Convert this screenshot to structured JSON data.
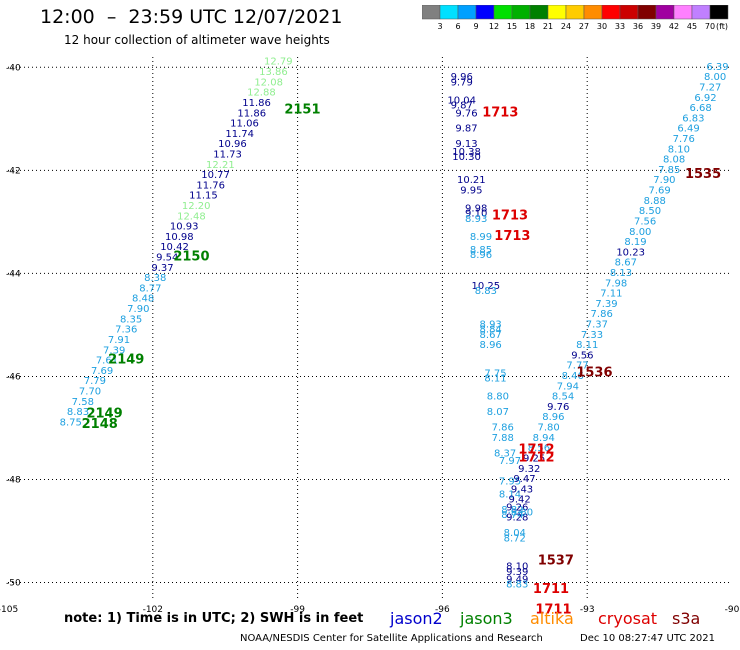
{
  "header": {
    "title": "12:00  –  23:59 UTC 12/07/2021",
    "subtitle": "12 hour collection of altimeter wave heights"
  },
  "colorbar": {
    "labels": [
      "3",
      "6",
      "9",
      "12",
      "15",
      "18",
      "21",
      "24",
      "27",
      "30",
      "33",
      "36",
      "39",
      "42",
      "45",
      "70"
    ],
    "unit": "(ft)",
    "colors": [
      "#808080",
      "#00e0ff",
      "#00a0ff",
      "#0000ff",
      "#00e000",
      "#00b000",
      "#008000",
      "#ffff00",
      "#ffcc00",
      "#ff8c00",
      "#ff0000",
      "#cc0000",
      "#800000",
      "#a000a0",
      "#ff80ff",
      "#c080ff",
      "#000000"
    ]
  },
  "note": "note:  1) Time is in UTC;  2) SWH is in feet",
  "satellite_legend": [
    {
      "name": "jason2",
      "color": "#0000cc"
    },
    {
      "name": "jason3",
      "color": "#008000"
    },
    {
      "name": "altika",
      "color": "#ff8c00"
    },
    {
      "name": "cryosat",
      "color": "#dd0000"
    },
    {
      "name": "s3a",
      "color": "#800000"
    }
  ],
  "footer": {
    "credit": "NOAA/NESDIS Center for Satellite Applications and Research",
    "timestamp": "Dec 10 08:27:47 UTC 2021"
  },
  "chart_data": {
    "type": "scatter",
    "title": "12:00  –  23:59 UTC 12/07/2021",
    "xlim": [
      -105,
      -90
    ],
    "ylim": [
      -50.3,
      -39.8
    ],
    "xticks": [
      -105,
      -102,
      -99,
      -96,
      -93,
      -90
    ],
    "xtick_labels": [
      "-105",
      "-102",
      "-99",
      "-96",
      "-93",
      "-90"
    ],
    "yticks": [
      -40,
      -42,
      -44,
      -46,
      -48,
      -50
    ],
    "ytick_labels": [
      "-40",
      "-42",
      "-44",
      "-46",
      "-48",
      "-50"
    ],
    "grid": true,
    "wave_heights": [
      {
        "x": -99.4,
        "y": -39.95,
        "text": "12.79",
        "color": "#90ee90"
      },
      {
        "x": -99.5,
        "y": -40.15,
        "text": "13.86",
        "color": "#90ee90"
      },
      {
        "x": -99.6,
        "y": -40.35,
        "text": "12.08",
        "color": "#90ee90"
      },
      {
        "x": -99.75,
        "y": -40.55,
        "text": "12.88",
        "color": "#90ee90"
      },
      {
        "x": -99.85,
        "y": -40.75,
        "text": "11.86",
        "color": "#00008b"
      },
      {
        "x": -99.95,
        "y": -40.95,
        "text": "11.86",
        "color": "#00008b"
      },
      {
        "x": -100.1,
        "y": -41.15,
        "text": "11.06",
        "color": "#00008b"
      },
      {
        "x": -100.2,
        "y": -41.35,
        "text": "11.74",
        "color": "#00008b"
      },
      {
        "x": -100.35,
        "y": -41.55,
        "text": "10.96",
        "color": "#00008b"
      },
      {
        "x": -100.45,
        "y": -41.75,
        "text": "11.73",
        "color": "#00008b"
      },
      {
        "x": -100.6,
        "y": -41.95,
        "text": "12.21",
        "color": "#90ee90"
      },
      {
        "x": -100.7,
        "y": -42.15,
        "text": "10.77",
        "color": "#00008b"
      },
      {
        "x": -100.8,
        "y": -42.35,
        "text": "11.76",
        "color": "#00008b"
      },
      {
        "x": -100.95,
        "y": -42.55,
        "text": "11.15",
        "color": "#00008b"
      },
      {
        "x": -101.1,
        "y": -42.75,
        "text": "12.20",
        "color": "#90ee90"
      },
      {
        "x": -101.2,
        "y": -42.95,
        "text": "12.48",
        "color": "#90ee90"
      },
      {
        "x": -101.35,
        "y": -43.15,
        "text": "10.93",
        "color": "#00008b"
      },
      {
        "x": -101.45,
        "y": -43.35,
        "text": "10.98",
        "color": "#00008b"
      },
      {
        "x": -101.55,
        "y": -43.55,
        "text": "10.42",
        "color": "#00008b"
      },
      {
        "x": -101.7,
        "y": -43.75,
        "text": "9.54",
        "color": "#00008b"
      },
      {
        "x": -101.8,
        "y": -43.95,
        "text": "9.37",
        "color": "#00008b"
      },
      {
        "x": -101.95,
        "y": -44.15,
        "text": "8.38",
        "color": "#1ea0e0"
      },
      {
        "x": -102.05,
        "y": -44.35,
        "text": "8.77",
        "color": "#1ea0e0"
      },
      {
        "x": -102.2,
        "y": -44.55,
        "text": "8.48",
        "color": "#1ea0e0"
      },
      {
        "x": -102.3,
        "y": -44.75,
        "text": "7.90",
        "color": "#1ea0e0"
      },
      {
        "x": -102.45,
        "y": -44.95,
        "text": "8.35",
        "color": "#1ea0e0"
      },
      {
        "x": -102.55,
        "y": -45.15,
        "text": "7.36",
        "color": "#1ea0e0"
      },
      {
        "x": -102.7,
        "y": -45.35,
        "text": "7.91",
        "color": "#1ea0e0"
      },
      {
        "x": -102.8,
        "y": -45.55,
        "text": "7.39",
        "color": "#1ea0e0"
      },
      {
        "x": -102.95,
        "y": -45.75,
        "text": "7.61",
        "color": "#1ea0e0"
      },
      {
        "x": -103.05,
        "y": -45.95,
        "text": "7.69",
        "color": "#1ea0e0"
      },
      {
        "x": -103.2,
        "y": -46.15,
        "text": "7.79",
        "color": "#1ea0e0"
      },
      {
        "x": -103.3,
        "y": -46.35,
        "text": "7.70",
        "color": "#1ea0e0"
      },
      {
        "x": -103.45,
        "y": -46.55,
        "text": "7.58",
        "color": "#1ea0e0"
      },
      {
        "x": -103.55,
        "y": -46.75,
        "text": "8.83",
        "color": "#1ea0e0"
      },
      {
        "x": -103.7,
        "y": -46.95,
        "text": "8.75",
        "color": "#1ea0e0"
      },
      {
        "x": -95.6,
        "y": -40.25,
        "text": "9.96",
        "color": "#00008b"
      },
      {
        "x": -95.6,
        "y": -40.35,
        "text": "9.79",
        "color": "#00008b"
      },
      {
        "x": -95.6,
        "y": -40.7,
        "text": "10.04",
        "color": "#00008b"
      },
      {
        "x": -95.6,
        "y": -40.8,
        "text": "9.87",
        "color": "#00008b"
      },
      {
        "x": -95.5,
        "y": -40.95,
        "text": "9.76",
        "color": "#00008b"
      },
      {
        "x": -95.5,
        "y": -41.25,
        "text": "9.87",
        "color": "#00008b"
      },
      {
        "x": -95.5,
        "y": -41.55,
        "text": "9.13",
        "color": "#00008b"
      },
      {
        "x": -95.5,
        "y": -41.7,
        "text": "10.38",
        "color": "#00008b"
      },
      {
        "x": -95.5,
        "y": -41.8,
        "text": "10.30",
        "color": "#00008b"
      },
      {
        "x": -95.4,
        "y": -42.25,
        "text": "10.21",
        "color": "#00008b"
      },
      {
        "x": -95.4,
        "y": -42.45,
        "text": "9.95",
        "color": "#00008b"
      },
      {
        "x": -95.3,
        "y": -42.8,
        "text": "9.98",
        "color": "#00008b"
      },
      {
        "x": -95.3,
        "y": -42.9,
        "text": "9.10",
        "color": "#00008b"
      },
      {
        "x": -95.3,
        "y": -43.0,
        "text": "8.93",
        "color": "#1ea0e0"
      },
      {
        "x": -95.2,
        "y": -43.35,
        "text": "8.99",
        "color": "#1ea0e0"
      },
      {
        "x": -95.2,
        "y": -43.6,
        "text": "8.85",
        "color": "#1ea0e0"
      },
      {
        "x": -95.2,
        "y": -43.7,
        "text": "8.96",
        "color": "#1ea0e0"
      },
      {
        "x": -95.1,
        "y": -44.3,
        "text": "10.25",
        "color": "#00008b"
      },
      {
        "x": -95.1,
        "y": -44.4,
        "text": "8.83",
        "color": "#1ea0e0"
      },
      {
        "x": -95.0,
        "y": -45.05,
        "text": "8.93",
        "color": "#1ea0e0"
      },
      {
        "x": -95.0,
        "y": -45.15,
        "text": "8.84",
        "color": "#1ea0e0"
      },
      {
        "x": -95.0,
        "y": -45.25,
        "text": "8.67",
        "color": "#1ea0e0"
      },
      {
        "x": -95.0,
        "y": -45.45,
        "text": "8.96",
        "color": "#1ea0e0"
      },
      {
        "x": -94.9,
        "y": -46.0,
        "text": "7.75",
        "color": "#1ea0e0"
      },
      {
        "x": -94.9,
        "y": -46.1,
        "text": "8.11",
        "color": "#1ea0e0"
      },
      {
        "x": -94.85,
        "y": -46.45,
        "text": "8.80",
        "color": "#1ea0e0"
      },
      {
        "x": -94.85,
        "y": -46.75,
        "text": "8.07",
        "color": "#1ea0e0"
      },
      {
        "x": -94.75,
        "y": -47.05,
        "text": "7.86",
        "color": "#1ea0e0"
      },
      {
        "x": -94.75,
        "y": -47.25,
        "text": "7.88",
        "color": "#1ea0e0"
      },
      {
        "x": -94.7,
        "y": -47.55,
        "text": "8.37",
        "color": "#1ea0e0"
      },
      {
        "x": -94.6,
        "y": -47.7,
        "text": "7.97",
        "color": "#1ea0e0"
      },
      {
        "x": -94.6,
        "y": -48.1,
        "text": "7.95",
        "color": "#1ea0e0"
      },
      {
        "x": -94.6,
        "y": -48.35,
        "text": "8.14",
        "color": "#1ea0e0"
      },
      {
        "x": -94.55,
        "y": -48.65,
        "text": "8.82",
        "color": "#1ea0e0"
      },
      {
        "x": -94.55,
        "y": -48.75,
        "text": "8.74",
        "color": "#1ea0e0"
      },
      {
        "x": -94.5,
        "y": -49.1,
        "text": "8.04",
        "color": "#1ea0e0"
      },
      {
        "x": -94.5,
        "y": -49.2,
        "text": "8.72",
        "color": "#1ea0e0"
      },
      {
        "x": -94.45,
        "y": -49.75,
        "text": "8.10",
        "color": "#00008b"
      },
      {
        "x": -94.45,
        "y": -49.85,
        "text": "9.39",
        "color": "#00008b"
      },
      {
        "x": -94.45,
        "y": -50.0,
        "text": "9.49",
        "color": "#00008b"
      },
      {
        "x": -94.45,
        "y": -50.1,
        "text": "8.83",
        "color": "#1ea0e0"
      },
      {
        "x": -90.3,
        "y": -40.05,
        "text": "6.39",
        "color": "#1ea0e0"
      },
      {
        "x": -90.35,
        "y": -40.25,
        "text": "8.00",
        "color": "#1ea0e0"
      },
      {
        "x": -90.45,
        "y": -40.45,
        "text": "7.27",
        "color": "#1ea0e0"
      },
      {
        "x": -90.55,
        "y": -40.65,
        "text": "6.92",
        "color": "#1ea0e0"
      },
      {
        "x": -90.65,
        "y": -40.85,
        "text": "6.68",
        "color": "#1ea0e0"
      },
      {
        "x": -90.8,
        "y": -41.05,
        "text": "6.83",
        "color": "#1ea0e0"
      },
      {
        "x": -90.9,
        "y": -41.25,
        "text": "6.49",
        "color": "#1ea0e0"
      },
      {
        "x": -91.0,
        "y": -41.45,
        "text": "7.76",
        "color": "#1ea0e0"
      },
      {
        "x": -91.1,
        "y": -41.65,
        "text": "8.10",
        "color": "#1ea0e0"
      },
      {
        "x": -91.2,
        "y": -41.85,
        "text": "8.08",
        "color": "#1ea0e0"
      },
      {
        "x": -91.3,
        "y": -42.05,
        "text": "7.85",
        "color": "#1ea0e0"
      },
      {
        "x": -91.4,
        "y": -42.25,
        "text": "7.90",
        "color": "#1ea0e0"
      },
      {
        "x": -91.5,
        "y": -42.45,
        "text": "7.69",
        "color": "#1ea0e0"
      },
      {
        "x": -91.6,
        "y": -42.65,
        "text": "8.88",
        "color": "#1ea0e0"
      },
      {
        "x": -91.7,
        "y": -42.85,
        "text": "8.50",
        "color": "#1ea0e0"
      },
      {
        "x": -91.8,
        "y": -43.05,
        "text": "7.56",
        "color": "#1ea0e0"
      },
      {
        "x": -91.9,
        "y": -43.25,
        "text": "8.00",
        "color": "#1ea0e0"
      },
      {
        "x": -92.0,
        "y": -43.45,
        "text": "8.19",
        "color": "#1ea0e0"
      },
      {
        "x": -92.1,
        "y": -43.65,
        "text": "10.23",
        "color": "#00008b"
      },
      {
        "x": -92.2,
        "y": -43.85,
        "text": "8.67",
        "color": "#1ea0e0"
      },
      {
        "x": -92.3,
        "y": -44.05,
        "text": "8.13",
        "color": "#1ea0e0"
      },
      {
        "x": -92.4,
        "y": -44.25,
        "text": "7.98",
        "color": "#1ea0e0"
      },
      {
        "x": -92.5,
        "y": -44.45,
        "text": "7.11",
        "color": "#1ea0e0"
      },
      {
        "x": -92.6,
        "y": -44.65,
        "text": "7.39",
        "color": "#1ea0e0"
      },
      {
        "x": -92.7,
        "y": -44.85,
        "text": "7.86",
        "color": "#1ea0e0"
      },
      {
        "x": -92.8,
        "y": -45.05,
        "text": "7.37",
        "color": "#1ea0e0"
      },
      {
        "x": -92.9,
        "y": -45.25,
        "text": "7.33",
        "color": "#1ea0e0"
      },
      {
        "x": -93.0,
        "y": -45.45,
        "text": "8.11",
        "color": "#1ea0e0"
      },
      {
        "x": -93.1,
        "y": -45.65,
        "text": "9.56",
        "color": "#00008b"
      },
      {
        "x": -93.2,
        "y": -45.85,
        "text": "7.77",
        "color": "#1ea0e0"
      },
      {
        "x": -93.3,
        "y": -46.05,
        "text": "8.46",
        "color": "#1ea0e0"
      },
      {
        "x": -93.4,
        "y": -46.25,
        "text": "7.94",
        "color": "#1ea0e0"
      },
      {
        "x": -93.5,
        "y": -46.45,
        "text": "8.54",
        "color": "#1ea0e0"
      },
      {
        "x": -93.6,
        "y": -46.65,
        "text": "9.76",
        "color": "#00008b"
      },
      {
        "x": -93.7,
        "y": -46.85,
        "text": "8.96",
        "color": "#1ea0e0"
      },
      {
        "x": -93.8,
        "y": -47.05,
        "text": "7.80",
        "color": "#1ea0e0"
      },
      {
        "x": -93.9,
        "y": -47.25,
        "text": "8.94",
        "color": "#1ea0e0"
      },
      {
        "x": -94.0,
        "y": -47.45,
        "text": "8.56",
        "color": "#1ea0e0"
      },
      {
        "x": -94.1,
        "y": -47.65,
        "text": "9.25",
        "color": "#00008b"
      },
      {
        "x": -94.2,
        "y": -47.85,
        "text": "9.32",
        "color": "#00008b"
      },
      {
        "x": -94.3,
        "y": -48.05,
        "text": "9.47",
        "color": "#00008b"
      },
      {
        "x": -94.35,
        "y": -48.25,
        "text": "9.43",
        "color": "#00008b"
      },
      {
        "x": -94.4,
        "y": -48.45,
        "text": "9.42",
        "color": "#00008b"
      },
      {
        "x": -94.45,
        "y": -48.6,
        "text": "9.26",
        "color": "#00008b"
      },
      {
        "x": -94.45,
        "y": -48.8,
        "text": "9.28",
        "color": "#00008b"
      },
      {
        "x": -94.35,
        "y": -48.7,
        "text": "8.80",
        "color": "#1ea0e0"
      }
    ],
    "pass_labels": [
      {
        "x": -98.9,
        "y": -40.9,
        "text": "2151",
        "color": "#008000"
      },
      {
        "x": -101.2,
        "y": -43.75,
        "text": "2150",
        "color": "#008000"
      },
      {
        "x": -102.55,
        "y": -45.75,
        "text": "2149",
        "color": "#008000"
      },
      {
        "x": -103.0,
        "y": -46.8,
        "text": "2149",
        "color": "#008000"
      },
      {
        "x": -103.1,
        "y": -47.0,
        "text": "2148",
        "color": "#008000"
      },
      {
        "x": -94.8,
        "y": -40.95,
        "text": "1713",
        "color": "#dd0000"
      },
      {
        "x": -94.6,
        "y": -42.95,
        "text": "1713",
        "color": "#dd0000"
      },
      {
        "x": -94.55,
        "y": -43.35,
        "text": "1713",
        "color": "#dd0000"
      },
      {
        "x": -94.05,
        "y": -47.5,
        "text": "1712",
        "color": "#dd0000"
      },
      {
        "x": -94.05,
        "y": -47.65,
        "text": "1712",
        "color": "#dd0000"
      },
      {
        "x": -93.65,
        "y": -49.65,
        "text": "1537",
        "color": "#800000"
      },
      {
        "x": -93.75,
        "y": -50.2,
        "text": "1711",
        "color": "#dd0000"
      },
      {
        "x": -93.7,
        "y": -50.6,
        "text": "1711",
        "color": "#dd0000"
      },
      {
        "x": -92.85,
        "y": -46.0,
        "text": "1536",
        "color": "#800000"
      },
      {
        "x": -90.6,
        "y": -42.15,
        "text": "1535",
        "color": "#800000"
      }
    ]
  }
}
